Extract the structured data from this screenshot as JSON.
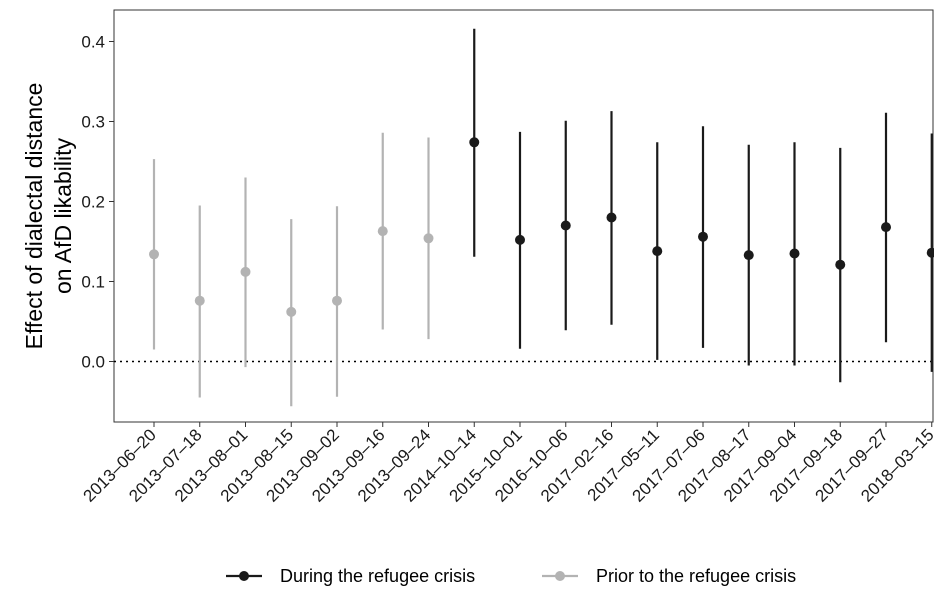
{
  "chart_data": {
    "type": "scatter",
    "ylabel": "Effect of dialectal distance on AfD likability",
    "ylabel_lines": [
      "Effect of dialectal distance",
      "on AfD likability"
    ],
    "xlabel": "",
    "ylim": [
      -0.075,
      0.44
    ],
    "yticks": [
      0.0,
      0.1,
      0.2,
      0.3,
      0.4
    ],
    "ytick_labels": [
      "0.0",
      "0.1",
      "0.2",
      "0.3",
      "0.4"
    ],
    "reference_line": 0.0,
    "grid": false,
    "legend_position": "bottom",
    "categories": [
      "2013–06–20",
      "2013–07–18",
      "2013–08–01",
      "2013–08–15",
      "2013–09–02",
      "2013–09–16",
      "2013–09–24",
      "2014–10–14",
      "2015–10–01",
      "2016–10–06",
      "2017–02–16",
      "2017–05–11",
      "2017–07–06",
      "2017–08–17",
      "2017–09–04",
      "2017–09–18",
      "2017–09–27",
      "2018–03–15"
    ],
    "series": [
      {
        "name": "During the refugee crisis",
        "color": "#1a1a1a",
        "points": [
          {
            "x": "2014–10–14",
            "y": 0.274,
            "lower": 0.131,
            "upper": 0.416
          },
          {
            "x": "2015–10–01",
            "y": 0.152,
            "lower": 0.016,
            "upper": 0.287
          },
          {
            "x": "2016–10–06",
            "y": 0.17,
            "lower": 0.039,
            "upper": 0.301
          },
          {
            "x": "2017–02–16",
            "y": 0.18,
            "lower": 0.046,
            "upper": 0.313
          },
          {
            "x": "2017–05–11",
            "y": 0.138,
            "lower": 0.002,
            "upper": 0.274
          },
          {
            "x": "2017–07–06",
            "y": 0.156,
            "lower": 0.017,
            "upper": 0.294
          },
          {
            "x": "2017–08–17",
            "y": 0.133,
            "lower": -0.005,
            "upper": 0.271
          },
          {
            "x": "2017–09–04",
            "y": 0.135,
            "lower": -0.005,
            "upper": 0.274
          },
          {
            "x": "2017–09–18",
            "y": 0.121,
            "lower": -0.026,
            "upper": 0.267
          },
          {
            "x": "2017–09–27",
            "y": 0.168,
            "lower": 0.024,
            "upper": 0.311
          },
          {
            "x": "2018–03–15",
            "y": 0.136,
            "lower": -0.013,
            "upper": 0.285
          }
        ]
      },
      {
        "name": "Prior to the refugee crisis",
        "color": "#b3b3b3",
        "points": [
          {
            "x": "2013–06–20",
            "y": 0.134,
            "lower": 0.015,
            "upper": 0.253
          },
          {
            "x": "2013–07–18",
            "y": 0.076,
            "lower": -0.045,
            "upper": 0.195
          },
          {
            "x": "2013–08–01",
            "y": 0.112,
            "lower": -0.007,
            "upper": 0.23
          },
          {
            "x": "2013–08–15",
            "y": 0.062,
            "lower": -0.056,
            "upper": 0.178
          },
          {
            "x": "2013–09–02",
            "y": 0.076,
            "lower": -0.044,
            "upper": 0.194
          },
          {
            "x": "2013–09–16",
            "y": 0.163,
            "lower": 0.04,
            "upper": 0.286
          },
          {
            "x": "2013–09–24",
            "y": 0.154,
            "lower": 0.028,
            "upper": 0.28
          }
        ]
      }
    ]
  }
}
